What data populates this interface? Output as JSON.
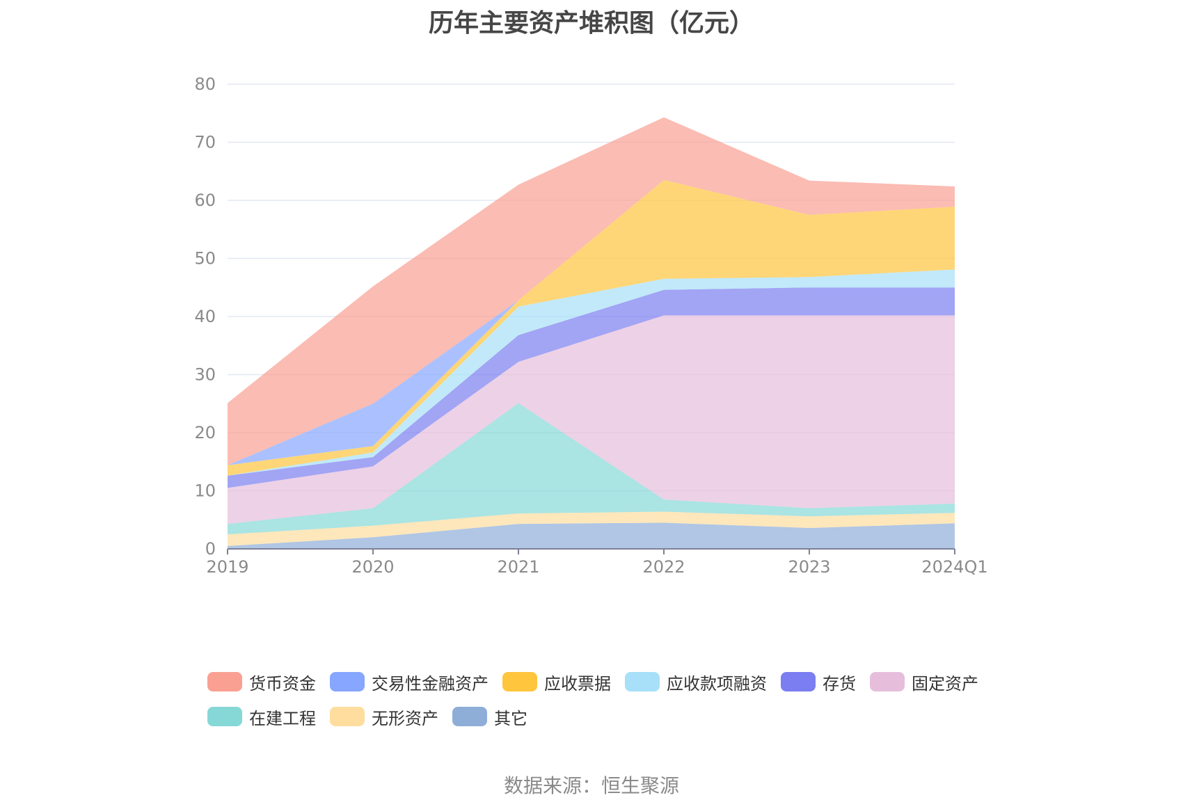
{
  "source_text": "数据来源：恒生聚源",
  "chart_data": {
    "type": "area",
    "stacked": true,
    "title": "历年主要资产堆积图（亿元）",
    "categories": [
      "2019",
      "2020",
      "2021",
      "2022",
      "2023",
      "2024Q1"
    ],
    "ylim": [
      0,
      80
    ],
    "yticks": [
      0,
      10,
      20,
      30,
      40,
      50,
      60,
      70,
      80
    ],
    "grid": true,
    "legend_position": "bottom",
    "series": [
      {
        "name": "其它",
        "color": "#8eaed8",
        "values": [
          0.5,
          2.0,
          4.3,
          4.5,
          3.6,
          4.4
        ]
      },
      {
        "name": "无形资产",
        "color": "#fedd9e",
        "values": [
          2.0,
          2.0,
          1.8,
          1.9,
          2.0,
          1.8
        ]
      },
      {
        "name": "在建工程",
        "color": "#86d8d7",
        "values": [
          1.8,
          3.0,
          19.0,
          2.1,
          1.4,
          1.6
        ]
      },
      {
        "name": "固定资产",
        "color": "#e6bedc",
        "values": [
          6.2,
          7.2,
          7.1,
          31.7,
          33.2,
          32.4
        ]
      },
      {
        "name": "存货",
        "color": "#7a7ef0",
        "values": [
          2.1,
          1.6,
          4.6,
          4.4,
          4.8,
          4.8
        ]
      },
      {
        "name": "应收款项融资",
        "color": "#a7e0f8",
        "values": [
          0.0,
          0.8,
          4.9,
          1.9,
          1.8,
          3.1
        ]
      },
      {
        "name": "应收票据",
        "color": "#ffc53d",
        "values": [
          1.8,
          1.1,
          1.1,
          17.0,
          10.7,
          10.8
        ]
      },
      {
        "name": "交易性金融资产",
        "color": "#87a6ff",
        "values": [
          0.0,
          7.3,
          0.0,
          0.0,
          0.0,
          0.0
        ]
      },
      {
        "name": "货币资金",
        "color": "#f9a093",
        "values": [
          10.7,
          20.2,
          19.9,
          10.8,
          5.9,
          3.5
        ]
      }
    ]
  },
  "legend_rows": [
    [
      "货币资金",
      "交易性金融资产",
      "应收票据",
      "应收款项融资",
      "存货",
      "固定资产"
    ],
    [
      "在建工程",
      "无形资产",
      "其它"
    ]
  ]
}
